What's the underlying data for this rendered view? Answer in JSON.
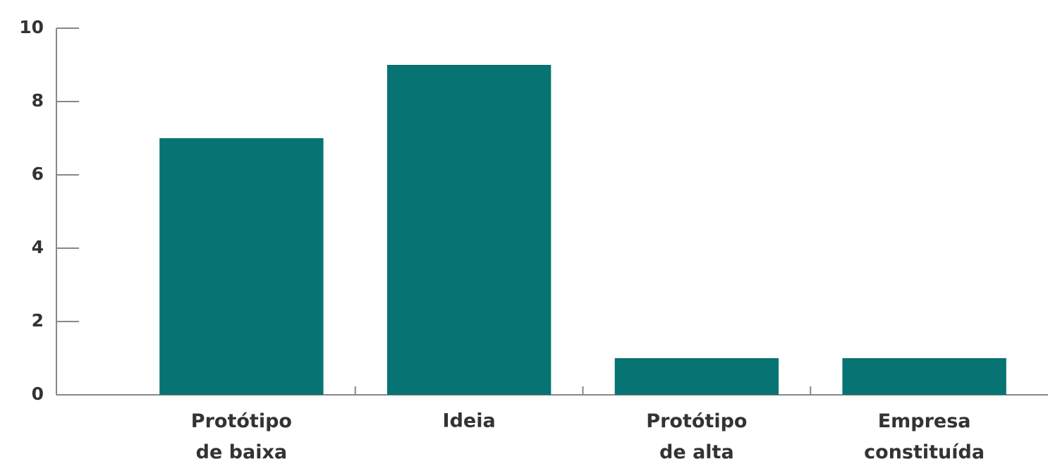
{
  "chart_data": {
    "type": "bar",
    "categories": [
      "Protótipo de baixa",
      "Ideia",
      "Protótipo de alta",
      "Empresa constituída"
    ],
    "values": [
      7,
      9,
      1,
      1
    ],
    "color": "#077372",
    "ylim": [
      0,
      10
    ],
    "yticks": [
      0,
      2,
      4,
      6,
      8,
      10
    ]
  }
}
